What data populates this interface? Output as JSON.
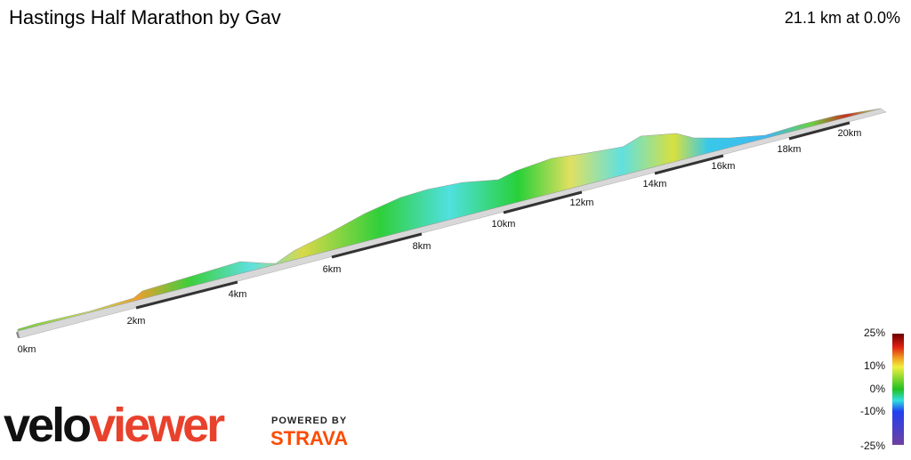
{
  "header": {
    "title": "Hastings Half Marathon by Gav",
    "summary": "21.1 km at 0.0%"
  },
  "km_labels": [
    "0km",
    "2km",
    "4km",
    "6km",
    "8km",
    "10km",
    "12km",
    "14km",
    "16km",
    "18km",
    "20km"
  ],
  "legend": {
    "labels": [
      "25%",
      "10%",
      "0%",
      "-10%",
      "-25%"
    ]
  },
  "branding": {
    "logo_left": "velo",
    "logo_right": "viewer",
    "powered_by": "POWERED BY",
    "strava": "STRAVA"
  }
}
